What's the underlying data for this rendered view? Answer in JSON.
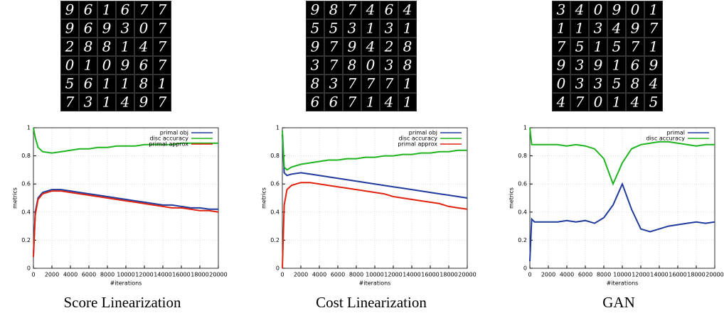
{
  "chart_data": [
    {
      "type": "line",
      "caption": "Score Linearization",
      "samples": [
        [
          "9",
          "6",
          "1",
          "6",
          "7",
          "7"
        ],
        [
          "9",
          "6",
          "9",
          "3",
          "0",
          "7"
        ],
        [
          "2",
          "8",
          "8",
          "1",
          "4",
          "7"
        ],
        [
          "0",
          "1",
          "0",
          "9",
          "6",
          "7"
        ],
        [
          "5",
          "6",
          "1",
          "1",
          "8",
          "1"
        ],
        [
          "7",
          "3",
          "1",
          "4",
          "9",
          "7"
        ]
      ],
      "xlabel": "#iterations",
      "ylabel": "metrics",
      "x": [
        0,
        200,
        500,
        1000,
        2000,
        3000,
        4000,
        5000,
        6000,
        7000,
        8000,
        9000,
        10000,
        11000,
        12000,
        13000,
        14000,
        15000,
        16000,
        17000,
        18000,
        19000,
        20000
      ],
      "xlim": [
        0,
        20000
      ],
      "ylim": [
        0,
        1
      ],
      "xticks": [
        0,
        2000,
        4000,
        6000,
        8000,
        10000,
        12000,
        14000,
        16000,
        18000,
        20000
      ],
      "yticks": [
        0,
        0.2,
        0.4,
        0.6,
        0.8,
        1
      ],
      "grid": true,
      "legend": "upper right",
      "series": [
        {
          "name": "primal obj",
          "color": "#1f3b9b",
          "values": [
            0.1,
            0.4,
            0.5,
            0.54,
            0.56,
            0.56,
            0.55,
            0.54,
            0.53,
            0.52,
            0.51,
            0.5,
            0.49,
            0.48,
            0.47,
            0.46,
            0.45,
            0.45,
            0.44,
            0.43,
            0.43,
            0.42,
            0.42
          ]
        },
        {
          "name": "disc accuracy",
          "color": "#1fb41f",
          "values": [
            1.0,
            0.93,
            0.86,
            0.83,
            0.82,
            0.83,
            0.84,
            0.85,
            0.85,
            0.86,
            0.86,
            0.87,
            0.87,
            0.87,
            0.88,
            0.88,
            0.88,
            0.88,
            0.89,
            0.89,
            0.89,
            0.89,
            0.89
          ]
        },
        {
          "name": "primal approx",
          "color": "#e0230f",
          "values": [
            0.08,
            0.38,
            0.49,
            0.53,
            0.55,
            0.55,
            0.54,
            0.53,
            0.52,
            0.51,
            0.5,
            0.49,
            0.48,
            0.47,
            0.46,
            0.45,
            0.44,
            0.43,
            0.43,
            0.42,
            0.41,
            0.41,
            0.4
          ]
        }
      ]
    },
    {
      "type": "line",
      "caption": "Cost Linearization",
      "samples": [
        [
          "9",
          "8",
          "7",
          "4",
          "6",
          "4"
        ],
        [
          "5",
          "5",
          "3",
          "1",
          "3",
          "1"
        ],
        [
          "9",
          "7",
          "9",
          "4",
          "2",
          "8"
        ],
        [
          "3",
          "7",
          "8",
          "0",
          "3",
          "8"
        ],
        [
          "8",
          "3",
          "7",
          "7",
          "7",
          "1"
        ],
        [
          "6",
          "6",
          "7",
          "1",
          "4",
          "1"
        ]
      ],
      "xlabel": "#iterations",
      "ylabel": "metrics",
      "x": [
        0,
        200,
        500,
        1000,
        2000,
        3000,
        4000,
        5000,
        6000,
        7000,
        8000,
        9000,
        10000,
        11000,
        12000,
        13000,
        14000,
        15000,
        16000,
        17000,
        18000,
        19000,
        20000
      ],
      "xlim": [
        0,
        20000
      ],
      "ylim": [
        0,
        1
      ],
      "xticks": [
        0,
        2000,
        4000,
        6000,
        8000,
        10000,
        12000,
        14000,
        16000,
        18000,
        20000
      ],
      "yticks": [
        0,
        0.2,
        0.4,
        0.6,
        0.8,
        1
      ],
      "grid": true,
      "legend": "upper right",
      "series": [
        {
          "name": "primal obj",
          "color": "#1f3b9b",
          "values": [
            0.95,
            0.68,
            0.66,
            0.67,
            0.68,
            0.67,
            0.66,
            0.65,
            0.64,
            0.63,
            0.62,
            0.61,
            0.6,
            0.59,
            0.58,
            0.57,
            0.56,
            0.55,
            0.54,
            0.53,
            0.52,
            0.51,
            0.5
          ]
        },
        {
          "name": "disc accuracy",
          "color": "#1fb41f",
          "values": [
            0.98,
            0.72,
            0.7,
            0.72,
            0.74,
            0.75,
            0.76,
            0.77,
            0.77,
            0.78,
            0.78,
            0.79,
            0.79,
            0.8,
            0.8,
            0.81,
            0.81,
            0.82,
            0.82,
            0.83,
            0.83,
            0.84,
            0.84
          ]
        },
        {
          "name": "primal approx",
          "color": "#e0230f",
          "values": [
            0.0,
            0.45,
            0.56,
            0.59,
            0.61,
            0.61,
            0.6,
            0.59,
            0.58,
            0.57,
            0.56,
            0.55,
            0.54,
            0.53,
            0.51,
            0.5,
            0.49,
            0.48,
            0.47,
            0.46,
            0.44,
            0.43,
            0.42
          ]
        }
      ]
    },
    {
      "type": "line",
      "caption": "GAN",
      "samples": [
        [
          "3",
          "4",
          "0",
          "9",
          "0",
          "1"
        ],
        [
          "1",
          "1",
          "3",
          "4",
          "9",
          "7"
        ],
        [
          "7",
          "5",
          "1",
          "5",
          "7",
          "1"
        ],
        [
          "9",
          "3",
          "9",
          "1",
          "6",
          "9"
        ],
        [
          "0",
          "3",
          "3",
          "5",
          "8",
          "4"
        ],
        [
          "4",
          "7",
          "0",
          "1",
          "4",
          "5"
        ]
      ],
      "xlabel": "#iterations",
      "ylabel": "metrics",
      "x": [
        0,
        200,
        500,
        1000,
        2000,
        3000,
        4000,
        5000,
        6000,
        7000,
        8000,
        9000,
        10000,
        11000,
        12000,
        13000,
        14000,
        15000,
        16000,
        17000,
        18000,
        19000,
        20000
      ],
      "xlim": [
        0,
        20000
      ],
      "ylim": [
        0,
        1
      ],
      "xticks": [
        0,
        2000,
        4000,
        6000,
        8000,
        10000,
        12000,
        14000,
        16000,
        18000,
        20000
      ],
      "yticks": [
        0,
        0.2,
        0.4,
        0.6,
        0.8,
        1
      ],
      "grid": true,
      "legend": "upper right",
      "series": [
        {
          "name": "primal",
          "color": "#1f3b9b",
          "values": [
            0.05,
            0.35,
            0.33,
            0.33,
            0.33,
            0.33,
            0.34,
            0.33,
            0.34,
            0.32,
            0.36,
            0.45,
            0.6,
            0.42,
            0.28,
            0.26,
            0.28,
            0.3,
            0.31,
            0.32,
            0.33,
            0.32,
            0.33
          ]
        },
        {
          "name": "disc accuracy",
          "color": "#1fb41f",
          "values": [
            1.0,
            0.88,
            0.88,
            0.88,
            0.88,
            0.88,
            0.87,
            0.88,
            0.87,
            0.85,
            0.78,
            0.6,
            0.75,
            0.85,
            0.88,
            0.89,
            0.9,
            0.9,
            0.89,
            0.88,
            0.87,
            0.88,
            0.88
          ]
        }
      ]
    }
  ]
}
